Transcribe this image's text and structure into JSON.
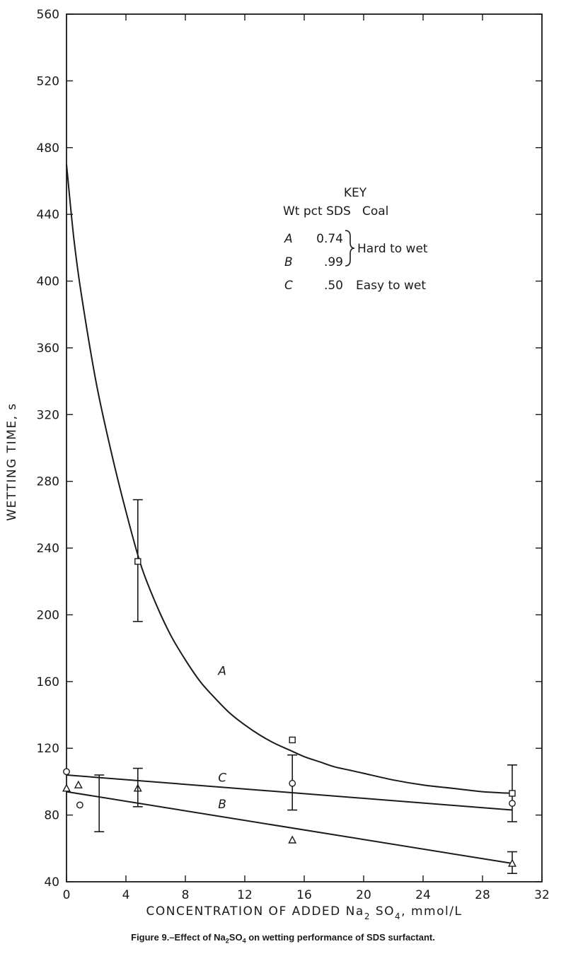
{
  "chart_data": {
    "type": "line",
    "title": "",
    "xlabel_parts": [
      "CONCENTRATION OF ADDED Na",
      "2",
      " SO",
      "4",
      ", mmol/L"
    ],
    "ylabel": "WETTING TIME, s",
    "xlim": [
      0,
      32
    ],
    "ylim": [
      40,
      560
    ],
    "x_ticks": [
      0,
      4,
      8,
      12,
      16,
      20,
      24,
      28,
      32
    ],
    "y_ticks": [
      40,
      80,
      120,
      160,
      200,
      240,
      280,
      320,
      360,
      400,
      440,
      480,
      520,
      560
    ],
    "grid": false,
    "series": [
      {
        "name": "A",
        "marker": "square",
        "curve": [
          [
            0,
            470
          ],
          [
            0.5,
            425
          ],
          [
            1,
            392
          ],
          [
            2,
            339
          ],
          [
            3,
            298
          ],
          [
            4,
            262
          ],
          [
            5,
            230
          ],
          [
            6,
            207
          ],
          [
            7,
            188
          ],
          [
            8,
            173
          ],
          [
            9,
            160
          ],
          [
            10,
            150
          ],
          [
            11,
            141
          ],
          [
            12,
            134
          ],
          [
            13,
            128
          ],
          [
            14,
            123
          ],
          [
            15,
            119
          ],
          [
            16,
            115
          ],
          [
            17,
            112
          ],
          [
            18,
            109
          ],
          [
            19,
            107
          ],
          [
            20,
            105
          ],
          [
            22,
            101
          ],
          [
            24,
            98
          ],
          [
            26,
            96
          ],
          [
            28,
            94
          ],
          [
            30,
            93
          ]
        ],
        "points": [
          [
            4.8,
            232
          ],
          [
            15.2,
            125
          ],
          [
            30.0,
            93
          ]
        ],
        "error_bars": [
          [
            4.8,
            196,
            269
          ],
          [
            30.0,
            76,
            110
          ]
        ]
      },
      {
        "name": "B",
        "marker": "triangle",
        "curve": [
          [
            0,
            94
          ],
          [
            30,
            51
          ]
        ],
        "points": [
          [
            0,
            96
          ],
          [
            0.8,
            98
          ],
          [
            4.8,
            96
          ],
          [
            15.2,
            65
          ],
          [
            30.0,
            51
          ]
        ],
        "error_bars": [
          [
            2.2,
            70,
            104
          ],
          [
            30.0,
            45,
            58
          ]
        ]
      },
      {
        "name": "C",
        "marker": "circle",
        "curve": [
          [
            0,
            104
          ],
          [
            30,
            83
          ]
        ],
        "points": [
          [
            0,
            106
          ],
          [
            0.9,
            86
          ],
          [
            15.2,
            99
          ],
          [
            30.0,
            87
          ]
        ],
        "error_bars": [
          [
            4.8,
            85,
            108
          ],
          [
            15.2,
            83,
            116
          ]
        ]
      }
    ],
    "curve_labels": [
      {
        "text": "A",
        "x": 10.2,
        "y": 164
      },
      {
        "text": "C",
        "x": 10.2,
        "y": 100
      },
      {
        "text": "B",
        "x": 10.2,
        "y": 84
      }
    ],
    "key": {
      "title": "KEY",
      "header": "Wt pct SDS   Coal",
      "rows": [
        {
          "id": "A",
          "value": "0.74"
        },
        {
          "id": "B",
          "value": ".99"
        },
        {
          "id": "C",
          "value": ".50",
          "coal": "Easy to wet"
        }
      ],
      "group_label": "Hard to wet"
    }
  },
  "caption_parts": [
    "Figure 9.–Effect of Na",
    "2",
    "SO",
    "4",
    " on wetting performance of SDS surfactant."
  ]
}
